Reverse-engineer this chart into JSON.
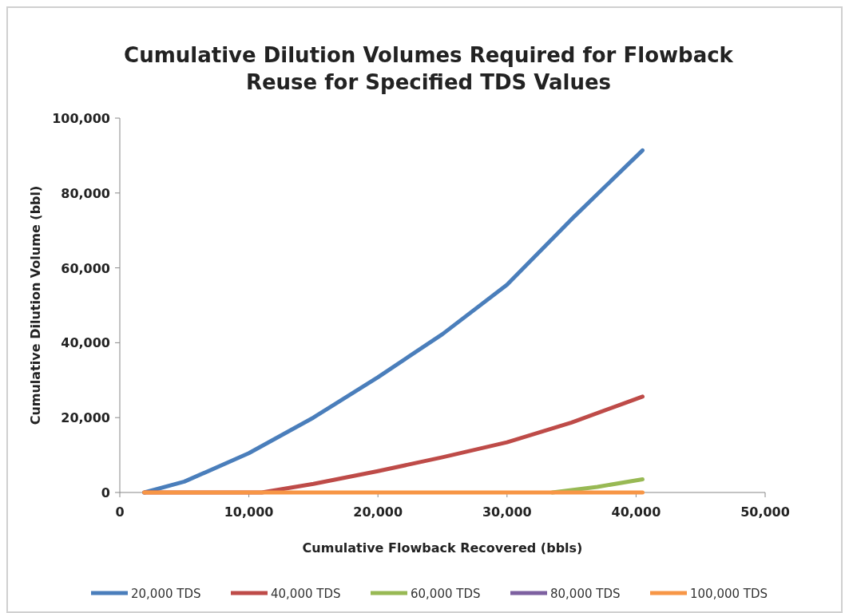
{
  "chart_data": {
    "type": "line",
    "title": "Cumulative Dilution Volumes Required for Flowback Reuse for Specified TDS Values",
    "xlabel": "Cumulative Flowback Recovered (bbls)",
    "ylabel": "Cumulative Dilution Volume (bbl)",
    "xlim": [
      0,
      50000
    ],
    "xticks": [
      {
        "value": 0,
        "label": "0"
      },
      {
        "value": 10000,
        "label": "10,000"
      },
      {
        "value": 20000,
        "label": "20,000"
      },
      {
        "value": 30000,
        "label": "30,000"
      },
      {
        "value": 40000,
        "label": "40,000"
      },
      {
        "value": 50000,
        "label": "50,000"
      }
    ],
    "ylim": [
      0,
      100000
    ],
    "yticks": [
      {
        "value": 0,
        "label": "0"
      },
      {
        "value": 20000,
        "label": "20,000"
      },
      {
        "value": 40000,
        "label": "40,000"
      },
      {
        "value": 60000,
        "label": "60,000"
      },
      {
        "value": 80000,
        "label": "80,000"
      },
      {
        "value": 100000,
        "label": "100,000"
      }
    ],
    "grid": false,
    "legend": "bottom",
    "marker": "none",
    "line_style": "solid",
    "series": [
      {
        "name": "20,000 TDS",
        "color": "#4a7ebb",
        "x": [
          1900,
          5000,
          10000,
          15000,
          20000,
          25000,
          30000,
          35000,
          40500
        ],
        "values": [
          0,
          2900,
          10500,
          20000,
          30800,
          42300,
          55500,
          73000,
          91400
        ]
      },
      {
        "name": "40,000 TDS",
        "color": "#be4b48",
        "x": [
          1900,
          11000,
          15000,
          20000,
          25000,
          30000,
          35000,
          40500
        ],
        "values": [
          0,
          0,
          2300,
          5700,
          9400,
          13400,
          18700,
          25600
        ]
      },
      {
        "name": "60,000 TDS",
        "color": "#98b954",
        "x": [
          33500,
          37000,
          40500
        ],
        "values": [
          0,
          1500,
          3500
        ]
      },
      {
        "name": "80,000 TDS",
        "color": "#7d60a0"
      },
      {
        "name": "100,000 TDS",
        "color": "#f79646",
        "x": [
          1900,
          40500
        ],
        "values": [
          0,
          0
        ]
      }
    ]
  }
}
